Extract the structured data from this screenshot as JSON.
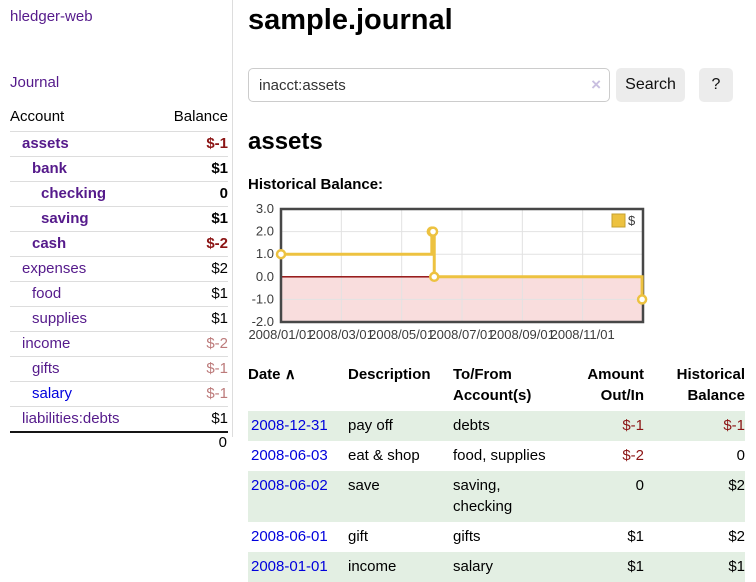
{
  "app": {
    "title": "hledger-web",
    "nav_journal": "Journal"
  },
  "sidebar": {
    "accounts_header": {
      "account": "Account",
      "balance": "Balance"
    },
    "rows": [
      {
        "name": "assets",
        "indent": 1,
        "bold": true,
        "link": "visited",
        "balance": "$-1"
      },
      {
        "name": "bank",
        "indent": 2,
        "bold": true,
        "link": "visited",
        "balance": "$1"
      },
      {
        "name": "checking",
        "indent": 3,
        "bold": true,
        "link": "visited",
        "balance": "0"
      },
      {
        "name": "saving",
        "indent": 3,
        "bold": true,
        "link": "visited",
        "balance": "$1"
      },
      {
        "name": "cash",
        "indent": 2,
        "bold": true,
        "link": "visited",
        "balance": "$-2"
      },
      {
        "name": "expenses",
        "indent": 1,
        "bold": false,
        "link": "visited",
        "balance": "$2"
      },
      {
        "name": "food",
        "indent": 2,
        "bold": false,
        "link": "visited",
        "balance": "$1"
      },
      {
        "name": "supplies",
        "indent": 2,
        "bold": false,
        "link": "visited",
        "balance": "$1"
      },
      {
        "name": "income",
        "indent": 1,
        "bold": false,
        "link": "visited",
        "balance": "$-2"
      },
      {
        "name": "gifts",
        "indent": 2,
        "bold": false,
        "link": "visited",
        "balance": "$-1"
      },
      {
        "name": "salary",
        "indent": 2,
        "bold": false,
        "link": "unvisited",
        "balance": "$-1"
      },
      {
        "name": "liabilities:debts",
        "indent": 1,
        "bold": false,
        "link": "visited",
        "balance": "$1"
      }
    ],
    "total": "0"
  },
  "header": {
    "title": "sample.journal"
  },
  "search": {
    "value": "inacct:assets",
    "clear_icon": "×",
    "button": "Search",
    "help_button": "?"
  },
  "account_page": {
    "heading": "assets",
    "chart_label": "Historical Balance:"
  },
  "chart_data": {
    "type": "line",
    "title": "Historical Balance",
    "step": true,
    "xlim": [
      0,
      12
    ],
    "ylim": [
      -2,
      3
    ],
    "yticks": [
      3.0,
      2.0,
      1.0,
      0.0,
      -1.0,
      -2.0
    ],
    "xticks": [
      {
        "pos": 0,
        "label": "2008/01/01"
      },
      {
        "pos": 2,
        "label": "2008/03/01"
      },
      {
        "pos": 4,
        "label": "2008/05/01"
      },
      {
        "pos": 6,
        "label": "2008/07/01"
      },
      {
        "pos": 8,
        "label": "2008/09/01"
      },
      {
        "pos": 10,
        "label": "2008/11/01"
      }
    ],
    "series": [
      {
        "name": "$",
        "color": "#edc240",
        "points": [
          {
            "date": "2008-01-01",
            "x": 0,
            "y": 1
          },
          {
            "date": "2008-06-01",
            "x": 5.0,
            "y": 2
          },
          {
            "date": "2008-06-02",
            "x": 5.04,
            "y": 2
          },
          {
            "date": "2008-06-03",
            "x": 5.08,
            "y": 0
          },
          {
            "date": "2008-12-31",
            "x": 11.97,
            "y": -1
          }
        ]
      }
    ],
    "grid": true,
    "legend_position": "top-right",
    "negative_fill": "#f9dddd",
    "zero_line_color": "#8b0000"
  },
  "register": {
    "columns": [
      {
        "label": "Date",
        "sort": "∧"
      },
      {
        "label": "Description"
      },
      {
        "label": "To/From\nAccount(s)"
      },
      {
        "label": "Amount\nOut/In",
        "align": "right"
      },
      {
        "label": "Historical\nBalance",
        "align": "right"
      }
    ],
    "rows": [
      {
        "date": "2008-12-31",
        "description": "pay off",
        "accounts": "debts",
        "amount": "$-1",
        "balance": "$-1",
        "shaded": true
      },
      {
        "date": "2008-06-03",
        "description": "eat & shop",
        "accounts": "food, supplies",
        "amount": "$-2",
        "balance": "0",
        "shaded": false
      },
      {
        "date": "2008-06-02",
        "description": "save",
        "accounts": "saving, checking",
        "amount": "0",
        "balance": "$2",
        "shaded": true
      },
      {
        "date": "2008-06-01",
        "description": "gift",
        "accounts": "gifts",
        "amount": "$1",
        "balance": "$2",
        "shaded": false
      },
      {
        "date": "2008-01-01",
        "description": "income",
        "accounts": "salary",
        "amount": "$1",
        "balance": "$1",
        "shaded": true
      }
    ]
  },
  "colors": {
    "link_purple": "#551a8b",
    "link_blue": "#0000dd",
    "negative_red": "#8b1414",
    "negative_soft_red": "#bc7a7a",
    "row_stripe_green": "#e3efe3",
    "chart_line_yellow": "#edc240",
    "chart_negative_bg": "#f9dddd",
    "chart_zero_line": "#8b0000"
  }
}
